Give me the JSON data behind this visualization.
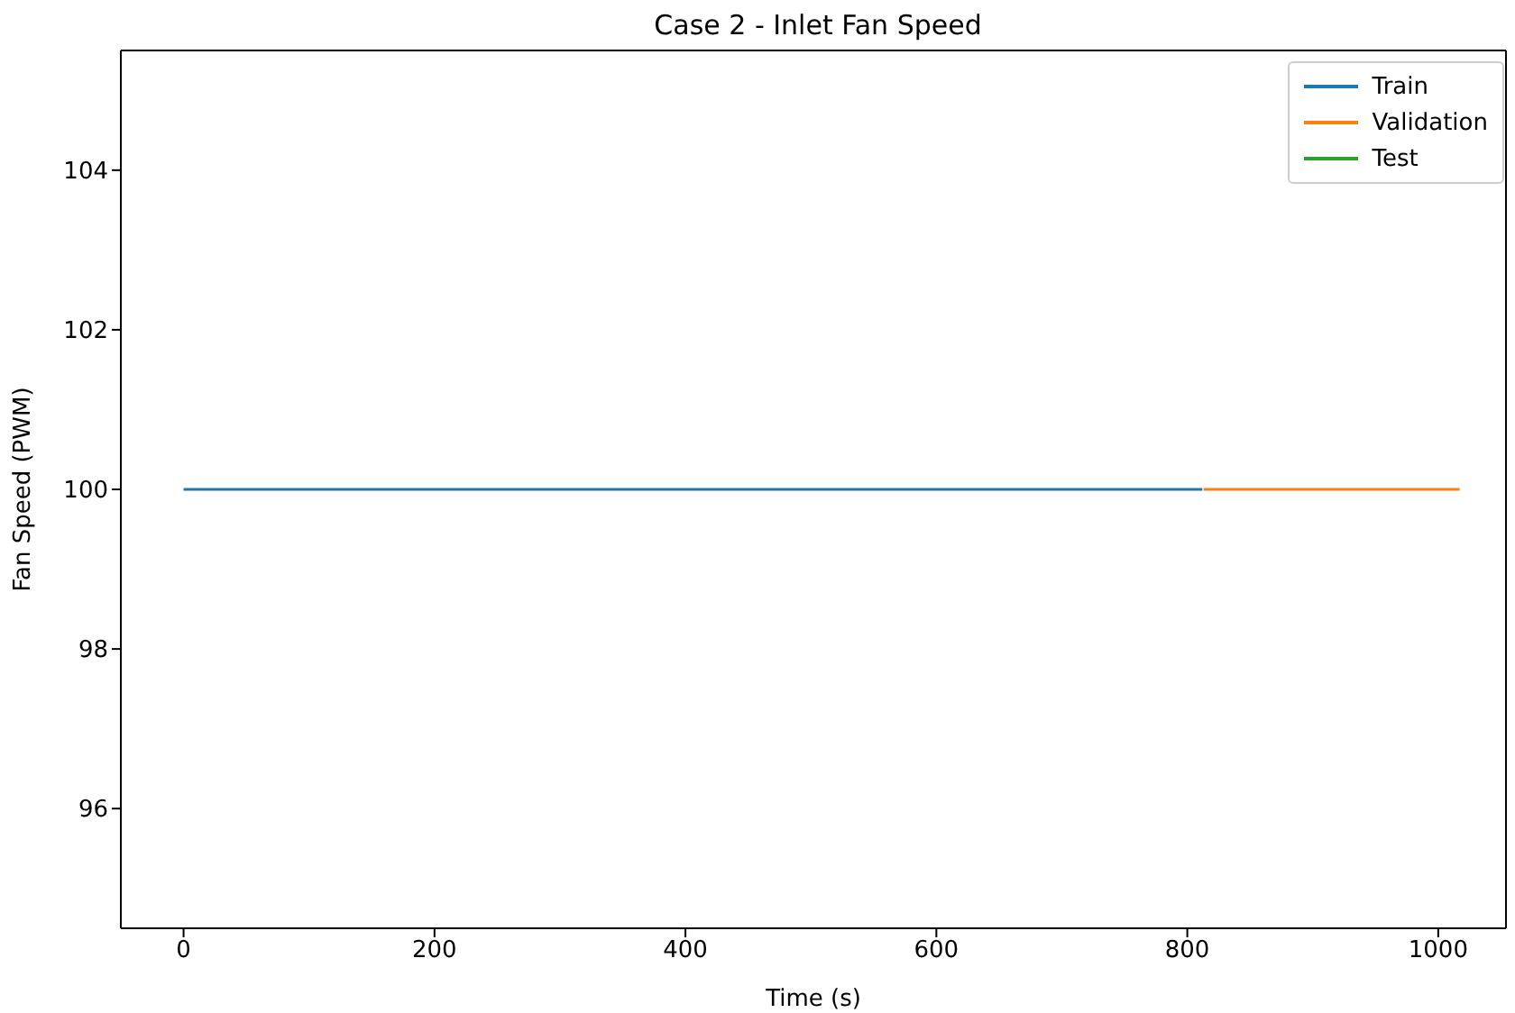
{
  "chart_data": {
    "type": "line",
    "title": "Case 2 - Inlet Fan Speed",
    "xlabel": "Time (s)",
    "ylabel": "Fan Speed (PWM)",
    "series": [
      {
        "name": "Train",
        "color": "#1f77b4",
        "x": [
          0,
          812
        ],
        "values": [
          100,
          100
        ]
      },
      {
        "name": "Validation",
        "color": "#ff7f0e",
        "x": [
          813,
          1017
        ],
        "values": [
          100,
          100
        ]
      },
      {
        "name": "Test",
        "color": "#2ca02c"
      }
    ],
    "xlim": [
      -50,
      1054
    ],
    "xticks": [
      0,
      200,
      400,
      600,
      800,
      1000
    ],
    "ylim": [
      94.5,
      105.5
    ],
    "yticks": [
      96,
      98,
      100,
      102,
      104
    ],
    "grid": false,
    "legend": "top right",
    "marker": "none",
    "line_style": "solid"
  }
}
